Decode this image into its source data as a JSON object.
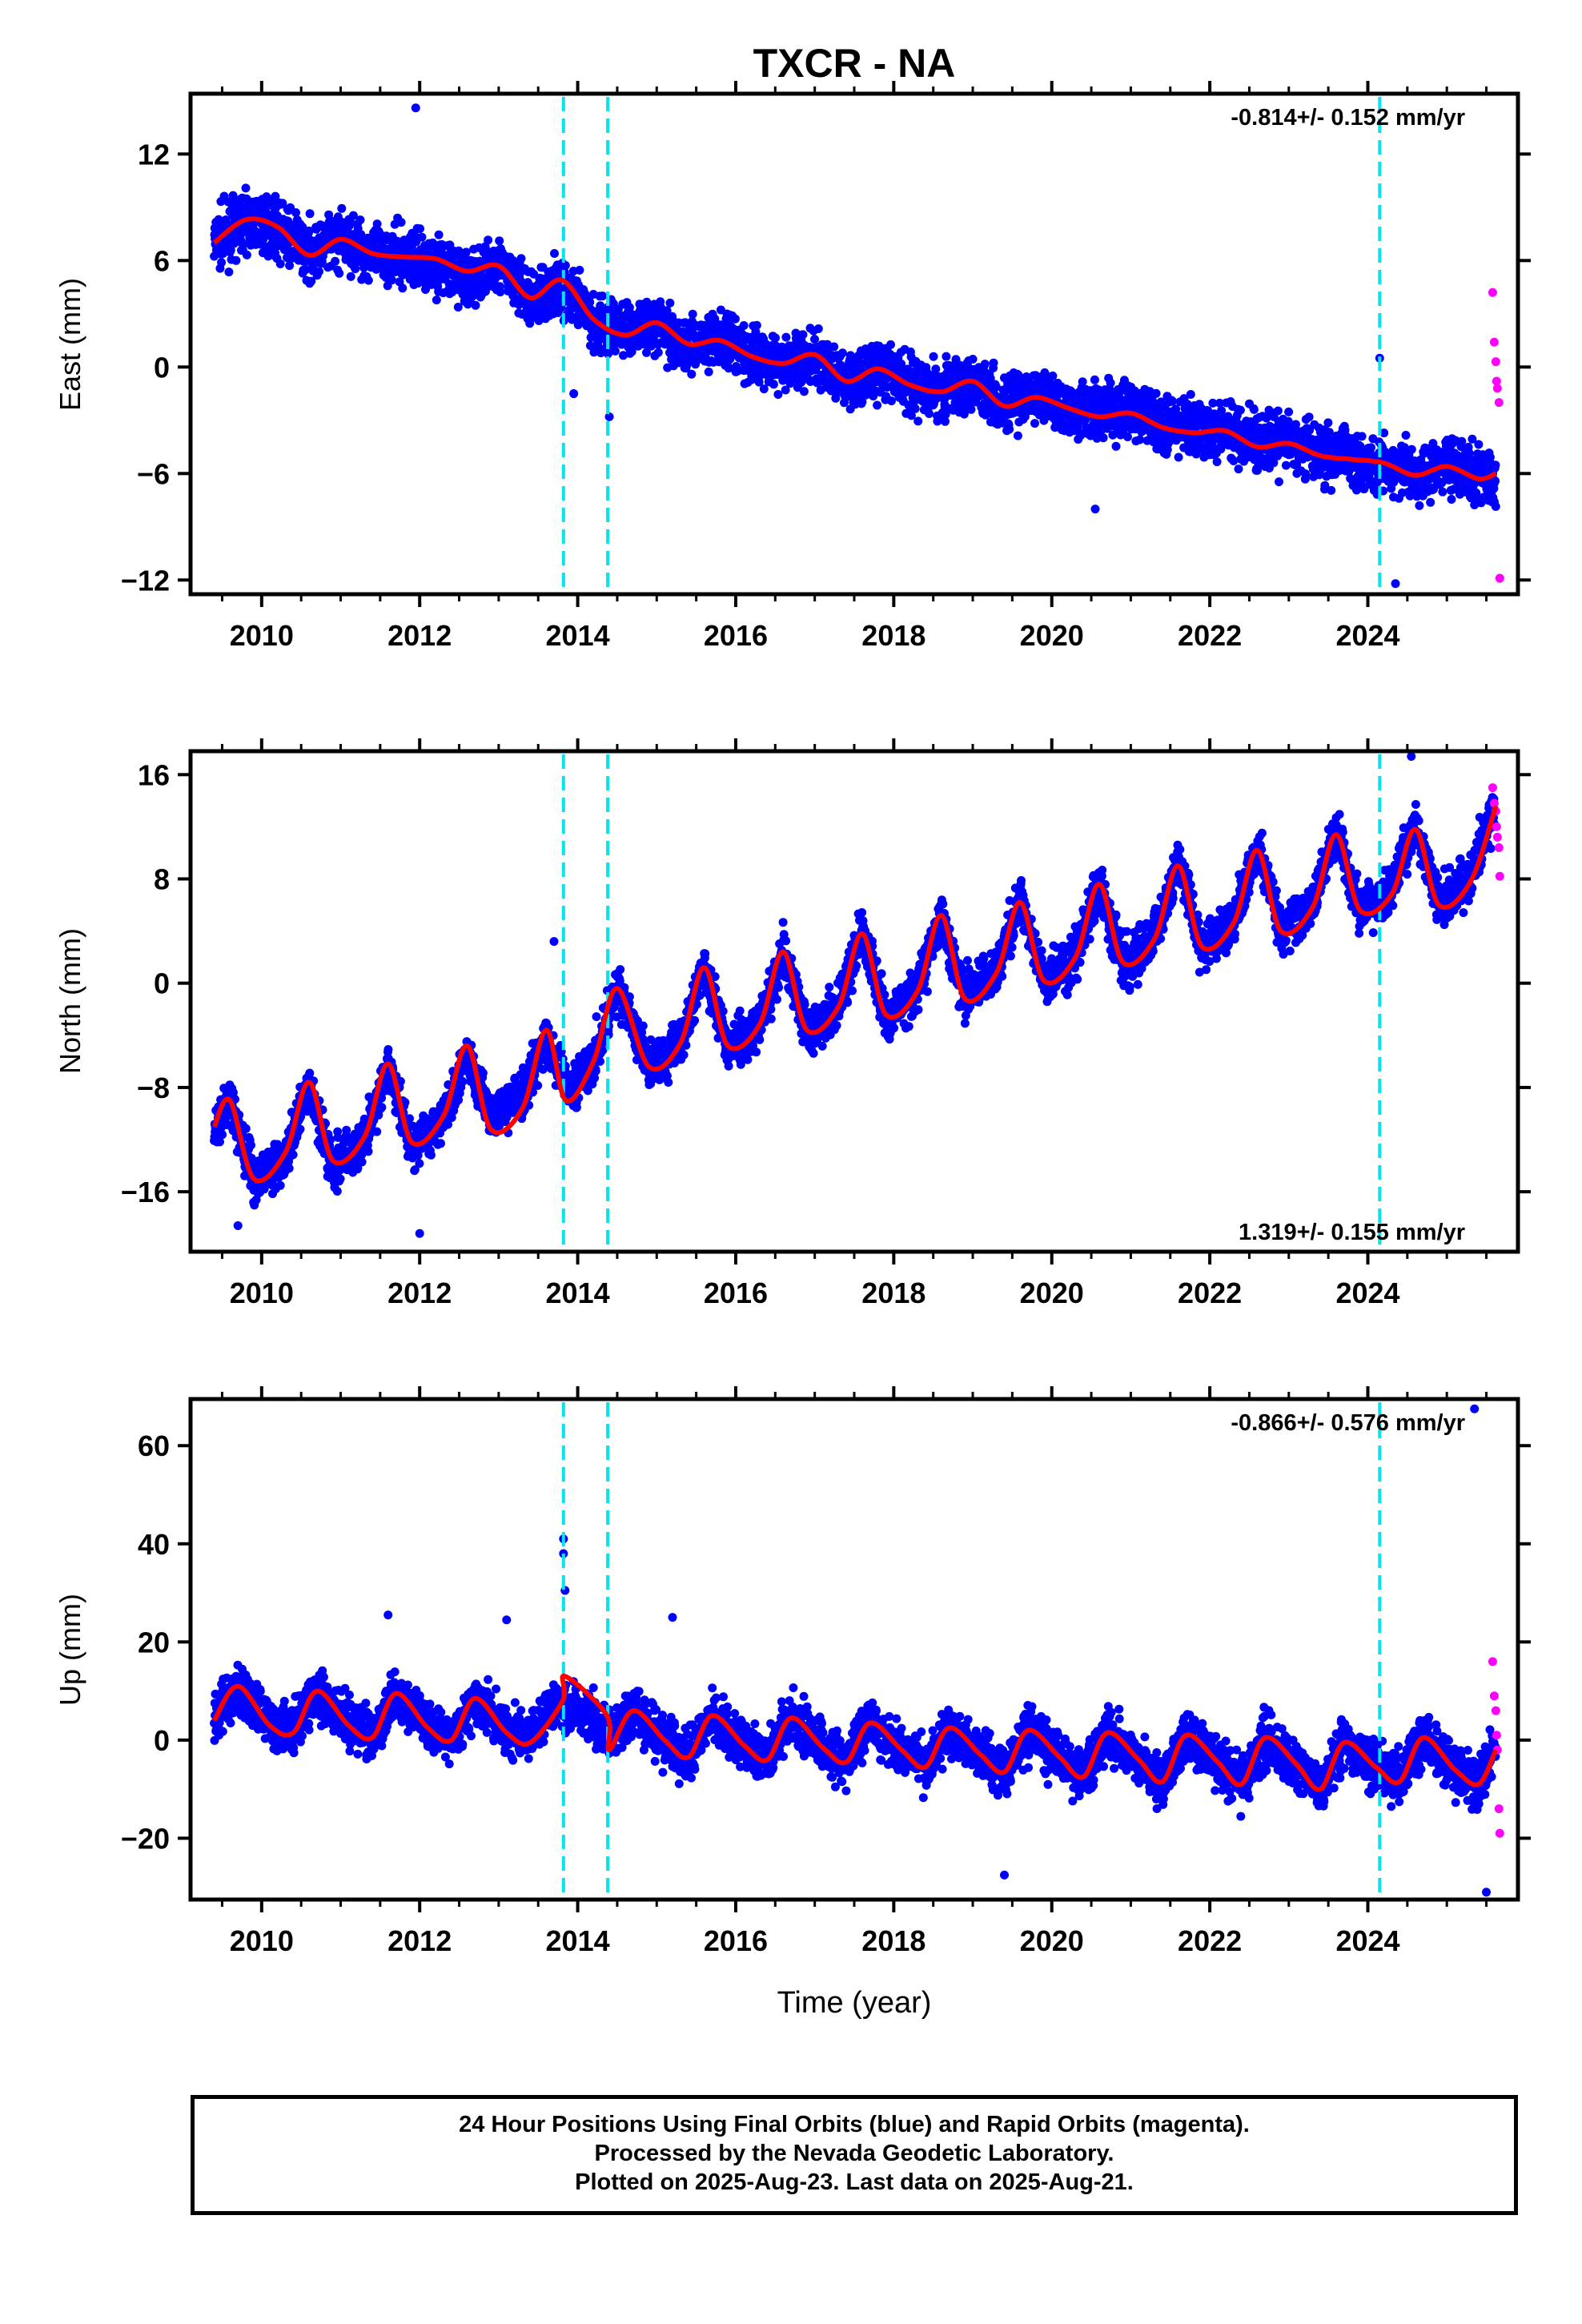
{
  "title": "TXCR - NA",
  "xlabel": "Time (year)",
  "footer": {
    "line1": "24 Hour Positions Using Final Orbits (blue) and Rapid Orbits (magenta).",
    "line2": "Processed by the Nevada Geodetic Laboratory.",
    "line3": "Plotted on 2025-Aug-23. Last data on 2025-Aug-21."
  },
  "colors": {
    "final": "#0000ff",
    "rapid": "#ff00ff",
    "model": "#ff0000",
    "events": "#00e5ee"
  },
  "chart_data": [
    {
      "type": "scatter",
      "title": "TXCR - NA",
      "ylabel": "East (mm)",
      "xlabel": "",
      "xlim": [
        2009.1,
        2025.9
      ],
      "ylim": [
        -12.8,
        15.4
      ],
      "x_ticks": [
        2010,
        2012,
        2014,
        2016,
        2018,
        2020,
        2022,
        2024
      ],
      "y_ticks": [
        -12,
        -6,
        0,
        6,
        12
      ],
      "rate_label": "-0.814+/- 0.152 mm/yr",
      "rate_position": "top-right",
      "event_lines": [
        2013.82,
        2014.38,
        2024.15
      ],
      "series": [
        {
          "role": "final-orbits",
          "x": [
            2009.4,
            2009.8,
            2010.2,
            2010.6,
            2011.0,
            2011.4,
            2011.8,
            2012.2,
            2012.6,
            2013.0,
            2013.4,
            2013.8,
            2014.2,
            2014.6,
            2015.0,
            2015.4,
            2015.8,
            2016.2,
            2016.6,
            2017.0,
            2017.4,
            2017.8,
            2018.2,
            2018.6,
            2019.0,
            2019.4,
            2019.8,
            2020.2,
            2020.6,
            2021.0,
            2021.4,
            2021.8,
            2022.2,
            2022.6,
            2023.0,
            2023.4,
            2023.8,
            2024.2,
            2024.6,
            2025.0,
            2025.4,
            2025.62
          ],
          "values": [
            7.0,
            8.3,
            7.8,
            6.5,
            7.2,
            6.4,
            6.2,
            5.9,
            4.9,
            5.8,
            3.8,
            4.6,
            2.6,
            2.1,
            2.5,
            1.2,
            1.6,
            0.6,
            0.3,
            0.4,
            -0.8,
            -0.1,
            -0.9,
            -1.3,
            -0.7,
            -2.1,
            -1.6,
            -2.2,
            -2.6,
            -2.4,
            -3.1,
            -3.5,
            -3.6,
            -4.3,
            -4.2,
            -4.9,
            -5.0,
            -5.6,
            -6.0,
            -5.4,
            -6.2,
            -6.3
          ],
          "spread": 1.4,
          "outliers": [
            [
              2011.95,
              14.6
            ],
            [
              2013.95,
              -1.5
            ],
            [
              2014.4,
              -2.8
            ],
            [
              2020.55,
              -8.0
            ],
            [
              2024.35,
              -12.2
            ],
            [
              2024.15,
              0.5
            ]
          ]
        },
        {
          "role": "rapid-orbits",
          "x": [
            2025.58,
            2025.6,
            2025.62,
            2025.63,
            2025.64,
            2025.66,
            2025.67
          ],
          "values": [
            4.2,
            1.4,
            0.3,
            -0.8,
            -1.2,
            -2.0,
            -11.9
          ]
        },
        {
          "role": "model",
          "x": [
            2009.4,
            2009.8,
            2010.2,
            2010.6,
            2011.0,
            2011.4,
            2011.8,
            2012.2,
            2012.6,
            2013.0,
            2013.4,
            2013.8,
            2014.2,
            2014.6,
            2015.0,
            2015.4,
            2015.8,
            2016.2,
            2016.6,
            2017.0,
            2017.4,
            2017.8,
            2018.2,
            2018.6,
            2019.0,
            2019.4,
            2019.8,
            2020.2,
            2020.6,
            2021.0,
            2021.4,
            2021.8,
            2022.2,
            2022.6,
            2023.0,
            2023.4,
            2023.8,
            2024.2,
            2024.6,
            2025.0,
            2025.4,
            2025.62
          ],
          "values": [
            7.0,
            8.3,
            7.9,
            6.3,
            7.2,
            6.4,
            6.2,
            6.1,
            5.4,
            5.7,
            3.9,
            4.9,
            2.7,
            1.8,
            2.5,
            1.3,
            1.5,
            0.6,
            0.2,
            0.7,
            -0.8,
            -0.1,
            -1.0,
            -1.4,
            -0.8,
            -2.2,
            -1.7,
            -2.3,
            -2.8,
            -2.6,
            -3.4,
            -3.7,
            -3.6,
            -4.5,
            -4.3,
            -5.0,
            -5.2,
            -5.4,
            -6.1,
            -5.6,
            -6.3,
            -6.0
          ]
        }
      ]
    },
    {
      "type": "scatter",
      "ylabel": "North (mm)",
      "xlabel": "",
      "xlim": [
        2009.1,
        2025.9
      ],
      "ylim": [
        -20.6,
        17.8
      ],
      "x_ticks": [
        2010,
        2012,
        2014,
        2016,
        2018,
        2020,
        2022,
        2024
      ],
      "y_ticks": [
        -16,
        -8,
        0,
        8,
        16
      ],
      "rate_label": "1.319+/- 0.155 mm/yr",
      "rate_position": "bottom-right",
      "event_lines": [
        2013.82,
        2014.38,
        2024.15
      ],
      "series": [
        {
          "role": "final-orbits",
          "x": [
            2009.4,
            2009.6,
            2009.9,
            2010.3,
            2010.6,
            2010.9,
            2011.3,
            2011.6,
            2011.9,
            2012.3,
            2012.6,
            2012.9,
            2013.3,
            2013.6,
            2013.9,
            2014.2,
            2014.5,
            2014.9,
            2015.3,
            2015.6,
            2015.9,
            2016.3,
            2016.6,
            2016.9,
            2017.3,
            2017.6,
            2017.9,
            2018.3,
            2018.6,
            2018.9,
            2019.3,
            2019.6,
            2019.9,
            2020.3,
            2020.6,
            2020.9,
            2021.3,
            2021.6,
            2021.9,
            2022.3,
            2022.6,
            2022.9,
            2023.3,
            2023.6,
            2023.9,
            2024.3,
            2024.6,
            2024.9,
            2025.3,
            2025.6
          ],
          "values": [
            -11.5,
            -9.0,
            -15.2,
            -13.5,
            -7.8,
            -14.0,
            -12.0,
            -6.4,
            -12.6,
            -10.4,
            -5.6,
            -10.2,
            -8.4,
            -4.6,
            -8.0,
            -6.0,
            -0.2,
            -6.4,
            -4.6,
            1.4,
            -5.0,
            -3.2,
            2.6,
            -3.8,
            -1.8,
            4.0,
            -2.6,
            -0.6,
            5.2,
            -1.0,
            1.0,
            6.4,
            0.0,
            2.0,
            7.8,
            1.4,
            3.6,
            9.2,
            2.8,
            4.6,
            10.4,
            4.2,
            6.0,
            11.6,
            5.6,
            7.2,
            12.0,
            6.2,
            8.0,
            13.6
          ],
          "spread": 1.6,
          "outliers": [
            [
              2009.7,
              -18.6
            ],
            [
              2012.0,
              -19.2
            ],
            [
              2013.7,
              3.2
            ],
            [
              2024.55,
              17.4
            ]
          ]
        },
        {
          "role": "rapid-orbits",
          "x": [
            2025.58,
            2025.6,
            2025.62,
            2025.63,
            2025.64,
            2025.66,
            2025.67
          ],
          "values": [
            15.0,
            13.8,
            13.2,
            12.0,
            11.2,
            10.4,
            8.2
          ]
        },
        {
          "role": "model",
          "x": [
            2009.4,
            2009.6,
            2009.9,
            2010.3,
            2010.6,
            2010.9,
            2011.3,
            2011.6,
            2011.9,
            2012.3,
            2012.6,
            2012.9,
            2013.3,
            2013.6,
            2013.85,
            2014.2,
            2014.5,
            2014.9,
            2015.3,
            2015.6,
            2015.9,
            2016.3,
            2016.6,
            2016.9,
            2017.3,
            2017.6,
            2017.9,
            2018.3,
            2018.6,
            2018.9,
            2019.3,
            2019.6,
            2019.9,
            2020.3,
            2020.6,
            2020.9,
            2021.3,
            2021.6,
            2021.9,
            2022.3,
            2022.6,
            2022.9,
            2023.3,
            2023.6,
            2023.9,
            2024.3,
            2024.6,
            2024.9,
            2025.3,
            2025.62
          ],
          "values": [
            -11.0,
            -9.0,
            -15.0,
            -13.0,
            -7.6,
            -13.6,
            -11.8,
            -6.2,
            -12.2,
            -10.2,
            -4.8,
            -11.2,
            -9.6,
            -3.6,
            -9.0,
            -6.0,
            -0.4,
            -6.4,
            -4.6,
            1.2,
            -4.8,
            -3.2,
            2.4,
            -3.6,
            -1.8,
            3.8,
            -2.4,
            -0.6,
            5.2,
            -1.2,
            0.8,
            6.2,
            0.2,
            2.0,
            7.6,
            1.6,
            3.4,
            9.0,
            2.8,
            4.6,
            10.2,
            4.0,
            5.8,
            11.4,
            5.6,
            6.8,
            11.8,
            6.0,
            7.8,
            13.6
          ]
        }
      ]
    },
    {
      "type": "scatter",
      "ylabel": "Up (mm)",
      "xlabel": "Time (year)",
      "xlim": [
        2009.1,
        2025.9
      ],
      "ylim": [
        -32.5,
        69.5
      ],
      "x_ticks": [
        2010,
        2012,
        2014,
        2016,
        2018,
        2020,
        2022,
        2024
      ],
      "y_ticks": [
        -20,
        0,
        20,
        40,
        60
      ],
      "rate_label": "-0.866+/- 0.576 mm/yr",
      "rate_position": "top-right",
      "event_lines": [
        2013.82,
        2014.38,
        2024.15
      ],
      "series": [
        {
          "role": "final-orbits",
          "x": [
            2009.4,
            2009.7,
            2010.1,
            2010.4,
            2010.7,
            2011.1,
            2011.4,
            2011.7,
            2012.1,
            2012.4,
            2012.7,
            2013.1,
            2013.4,
            2013.7,
            2014.1,
            2014.4,
            2014.7,
            2015.1,
            2015.4,
            2015.7,
            2016.1,
            2016.4,
            2016.7,
            2017.1,
            2017.4,
            2017.7,
            2018.1,
            2018.4,
            2018.7,
            2019.1,
            2019.4,
            2019.7,
            2020.1,
            2020.4,
            2020.7,
            2021.1,
            2021.4,
            2021.7,
            2022.1,
            2022.4,
            2022.7,
            2023.1,
            2023.4,
            2023.7,
            2024.1,
            2024.4,
            2024.7,
            2025.1,
            2025.4,
            2025.62
          ],
          "values": [
            4.0,
            10.5,
            3.0,
            2.0,
            10.0,
            3.5,
            1.0,
            9.5,
            3.0,
            0.5,
            8.5,
            2.0,
            0.0,
            7.5,
            6.0,
            1.0,
            6.0,
            0.0,
            -3.5,
            5.0,
            -1.0,
            -4.0,
            4.5,
            -1.5,
            -4.5,
            3.5,
            -2.0,
            -5.5,
            2.5,
            -3.0,
            -6.5,
            2.0,
            -3.5,
            -7.5,
            1.5,
            -4.0,
            -8.5,
            1.0,
            -4.5,
            -9.0,
            0.5,
            -5.0,
            -10.0,
            -0.5,
            -5.5,
            -8.5,
            0.5,
            -6.0,
            -9.0,
            -2.0
          ],
          "spread": 4.5,
          "outliers": [
            [
              2013.82,
              41.0
            ],
            [
              2013.82,
              38.0
            ],
            [
              2013.84,
              30.5
            ],
            [
              2011.6,
              25.5
            ],
            [
              2013.1,
              24.5
            ],
            [
              2015.2,
              25.0
            ],
            [
              2019.4,
              -27.5
            ],
            [
              2025.35,
              67.5
            ],
            [
              2025.5,
              -31.0
            ]
          ]
        },
        {
          "role": "rapid-orbits",
          "x": [
            2025.58,
            2025.6,
            2025.62,
            2025.63,
            2025.64,
            2025.66,
            2025.67
          ],
          "values": [
            16.0,
            9.0,
            6.0,
            1.0,
            -2.0,
            -14.0,
            -19.0
          ]
        },
        {
          "role": "model",
          "x": [
            2009.4,
            2009.7,
            2010.1,
            2010.4,
            2010.7,
            2011.1,
            2011.4,
            2011.7,
            2012.1,
            2012.4,
            2012.7,
            2013.1,
            2013.4,
            2013.81,
            2013.84,
            2014.37,
            2014.4,
            2014.7,
            2015.1,
            2015.4,
            2015.7,
            2016.1,
            2016.4,
            2016.7,
            2017.1,
            2017.4,
            2017.7,
            2018.1,
            2018.4,
            2018.7,
            2019.1,
            2019.4,
            2019.7,
            2020.1,
            2020.4,
            2020.7,
            2021.1,
            2021.4,
            2021.7,
            2022.1,
            2022.4,
            2022.7,
            2023.1,
            2023.4,
            2023.7,
            2024.1,
            2024.4,
            2024.7,
            2025.1,
            2025.4,
            2025.62
          ],
          "values": [
            4.0,
            11.0,
            3.0,
            1.5,
            10.0,
            3.0,
            0.5,
            9.5,
            2.5,
            0.0,
            8.5,
            1.5,
            -0.5,
            8.0,
            13.0,
            5.0,
            -2.0,
            6.0,
            0.0,
            -3.5,
            5.0,
            -1.0,
            -4.0,
            4.5,
            -1.5,
            -4.5,
            3.5,
            -2.0,
            -5.5,
            2.5,
            -3.0,
            -6.5,
            2.0,
            -3.5,
            -7.5,
            1.5,
            -4.0,
            -8.5,
            1.0,
            -4.5,
            -9.0,
            0.5,
            -5.0,
            -10.0,
            -0.5,
            -5.5,
            -8.5,
            0.5,
            -6.0,
            -9.0,
            -2.0
          ]
        }
      ]
    }
  ]
}
